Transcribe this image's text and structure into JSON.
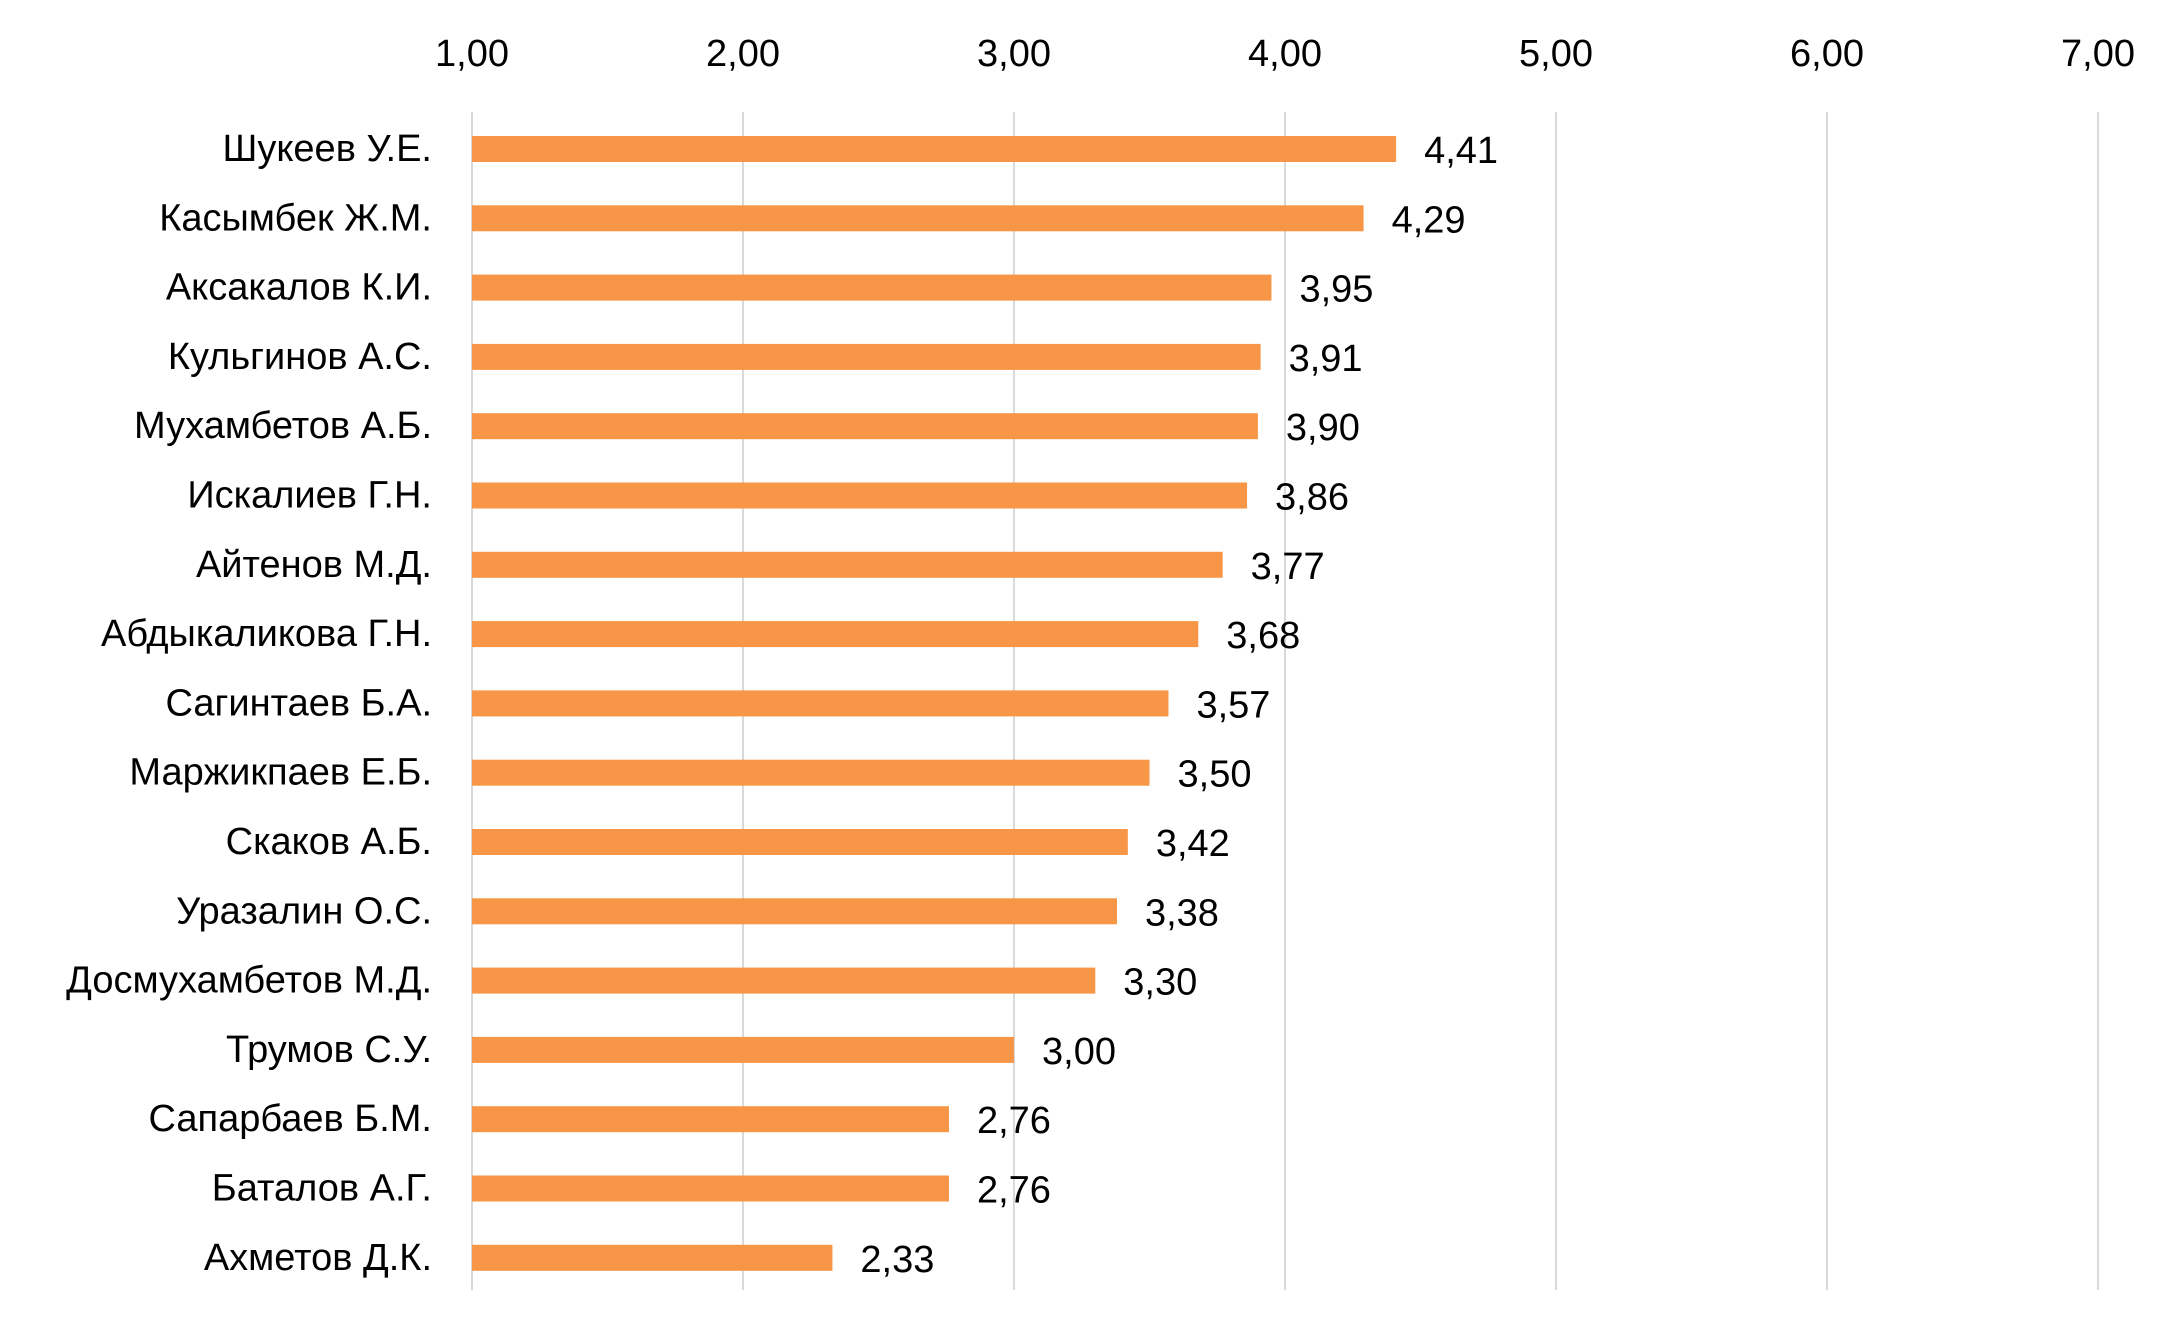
{
  "chart_data": {
    "type": "bar",
    "orientation": "horizontal",
    "title": "",
    "xlabel": "",
    "ylabel": "",
    "xlim": [
      1,
      7
    ],
    "ticks": [
      "1,00",
      "2,00",
      "3,00",
      "4,00",
      "5,00",
      "6,00",
      "7,00"
    ],
    "tick_values": [
      1,
      2,
      3,
      4,
      5,
      6,
      7
    ],
    "x_axis_position": "top",
    "grid": true,
    "legend": "none",
    "bar_color": "#F79646",
    "grid_color": "#D9D9D9",
    "categories": [
      "Шукеев У.Е.",
      "Касымбек Ж.М.",
      "Аксакалов К.И.",
      "Кульгинов А.С.",
      "Мухамбетов А.Б.",
      "Искалиев Г.Н.",
      "Айтенов М.Д.",
      "Абдыкаликова Г.Н.",
      "Сагинтаев Б.А.",
      "Маржикпаев Е.Б.",
      "Скаков А.Б.",
      "Уразалин О.С.",
      "Досмухамбетов М.Д.",
      "Трумов С.У.",
      "Сапарбаев Б.М.",
      "Баталов А.Г.",
      "Ахметов Д.К."
    ],
    "values": [
      4.41,
      4.29,
      3.95,
      3.91,
      3.9,
      3.86,
      3.77,
      3.68,
      3.57,
      3.5,
      3.42,
      3.38,
      3.3,
      3.0,
      2.76,
      2.76,
      2.33
    ],
    "value_labels": [
      "4,41",
      "4,29",
      "3,95",
      "3,91",
      "3,90",
      "3,86",
      "3,77",
      "3,68",
      "3,57",
      "3,50",
      "3,42",
      "3,38",
      "3,30",
      "3,00",
      "2,76",
      "2,76",
      "2,33"
    ]
  }
}
